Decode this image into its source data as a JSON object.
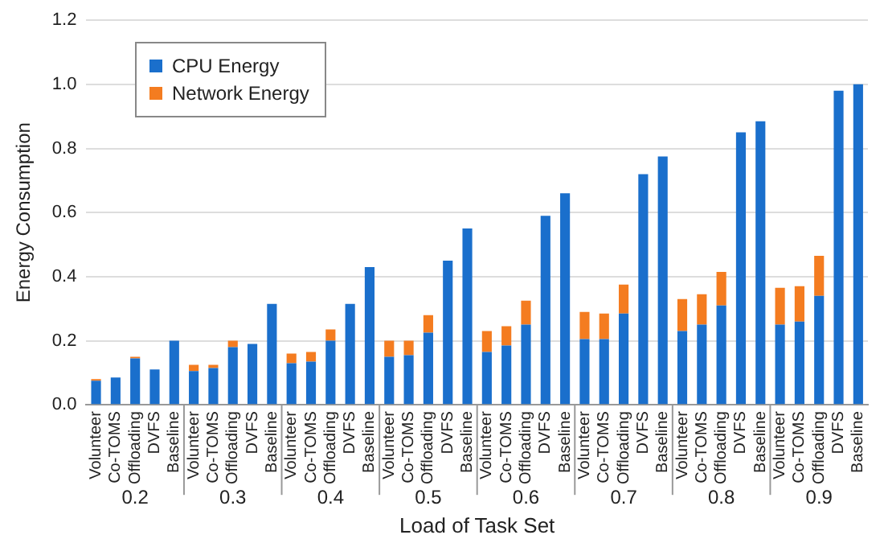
{
  "chart_data": {
    "type": "bar",
    "stacked": true,
    "xlabel": "Load of Task Set",
    "ylabel": "Energy Consumption",
    "categories": [
      "Volunteer",
      "Co-TOMS",
      "Offloading",
      "DVFS",
      "Baseline",
      "Volunteer",
      "Co-TOMS",
      "Offloading",
      "DVFS",
      "Baseline",
      "Volunteer",
      "Co-TOMS",
      "Offloading",
      "DVFS",
      "Baseline",
      "Volunteer",
      "Co-TOMS",
      "Offloading",
      "DVFS",
      "Baseline",
      "Volunteer",
      "Co-TOMS",
      "Offloading",
      "DVFS",
      "Baseline",
      "Volunteer",
      "Co-TOMS",
      "Offloading",
      "DVFS",
      "Baseline",
      "Volunteer",
      "Co-TOMS",
      "Offloading",
      "DVFS",
      "Baseline",
      "Volunteer",
      "Co-TOMS",
      "Offloading",
      "DVFS",
      "Baseline"
    ],
    "annotations": [
      "0.2",
      "0.3",
      "0.4",
      "0.5",
      "0.6",
      "0.7",
      "0.8",
      "0.9"
    ],
    "series": [
      {
        "name": "CPU Energy",
        "color": "#1a6fcc",
        "values": [
          0.075,
          0.085,
          0.145,
          0.11,
          0.2,
          0.105,
          0.115,
          0.18,
          0.19,
          0.315,
          0.13,
          0.135,
          0.2,
          0.315,
          0.43,
          0.15,
          0.155,
          0.225,
          0.45,
          0.55,
          0.165,
          0.185,
          0.25,
          0.59,
          0.66,
          0.205,
          0.205,
          0.285,
          0.72,
          0.775,
          0.23,
          0.25,
          0.31,
          0.85,
          0.885,
          0.25,
          0.26,
          0.34,
          0.98,
          1.0
        ]
      },
      {
        "name": "Network Energy",
        "color": "#f47c20",
        "values": [
          0.005,
          0,
          0.005,
          0,
          0,
          0.02,
          0.01,
          0.02,
          0,
          0,
          0.03,
          0.03,
          0.035,
          0,
          0,
          0.05,
          0.045,
          0.055,
          0,
          0,
          0.065,
          0.06,
          0.075,
          0,
          0,
          0.085,
          0.08,
          0.09,
          0,
          0,
          0.1,
          0.095,
          0.105,
          0,
          0,
          0.115,
          0.11,
          0.125,
          0,
          0
        ]
      }
    ],
    "ylim": [
      0,
      1.2
    ],
    "yticks": [
      {
        "value": 0,
        "label": "0.0"
      },
      {
        "value": 0.2,
        "label": "0.2"
      },
      {
        "value": 0.4,
        "label": "0.4"
      },
      {
        "value": 0.6,
        "label": "0.6"
      },
      {
        "value": 0.8,
        "label": "0.8"
      },
      {
        "value": 1,
        "label": "1.0"
      },
      {
        "value": 1.2,
        "label": "1.2"
      }
    ],
    "grid": "y",
    "legend": "top left"
  }
}
